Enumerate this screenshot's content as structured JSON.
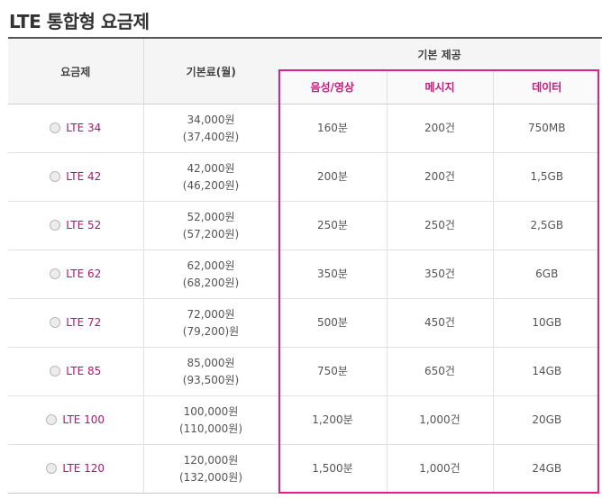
{
  "page": {
    "title": "LTE 통합형 요금제"
  },
  "table": {
    "headers": {
      "plan": "요금제",
      "fee": "기본료(월)",
      "provision": "기본 제공",
      "voice": "음성/영상",
      "message": "메시지",
      "data": "데이터"
    },
    "rows": [
      {
        "plan": "LTE 34",
        "fee": "34,000원",
        "fee_vat": "(37,400원)",
        "voice": "160분",
        "message": "200건",
        "data": "750MB"
      },
      {
        "plan": "LTE 42",
        "fee": "42,000원",
        "fee_vat": "(46,200원)",
        "voice": "200분",
        "message": "200건",
        "data": "1,5GB"
      },
      {
        "plan": "LTE 52",
        "fee": "52,000원",
        "fee_vat": "(57,200원)",
        "voice": "250분",
        "message": "250건",
        "data": "2,5GB"
      },
      {
        "plan": "LTE 62",
        "fee": "62,000원",
        "fee_vat": "(68,200원)",
        "voice": "350분",
        "message": "350건",
        "data": "6GB"
      },
      {
        "plan": "LTE 72",
        "fee": "72,000원",
        "fee_vat": "(79,200)원",
        "voice": "500분",
        "message": "450건",
        "data": "10GB"
      },
      {
        "plan": "LTE 85",
        "fee": "85,000원",
        "fee_vat": "(93,500원)",
        "voice": "750분",
        "message": "650건",
        "data": "14GB"
      },
      {
        "plan": "LTE 100",
        "fee": "100,000원",
        "fee_vat": "(110,000원)",
        "voice": "1,200분",
        "message": "1,000건",
        "data": "20GB"
      },
      {
        "plan": "LTE 120",
        "fee": "120,000원",
        "fee_vat": "(132,000원)",
        "voice": "1,500분",
        "message": "1,000건",
        "data": "24GB"
      }
    ]
  },
  "colors": {
    "accent": "#c8197a",
    "highlight_border": "#e0218a",
    "plan_name": "#b3136f"
  }
}
